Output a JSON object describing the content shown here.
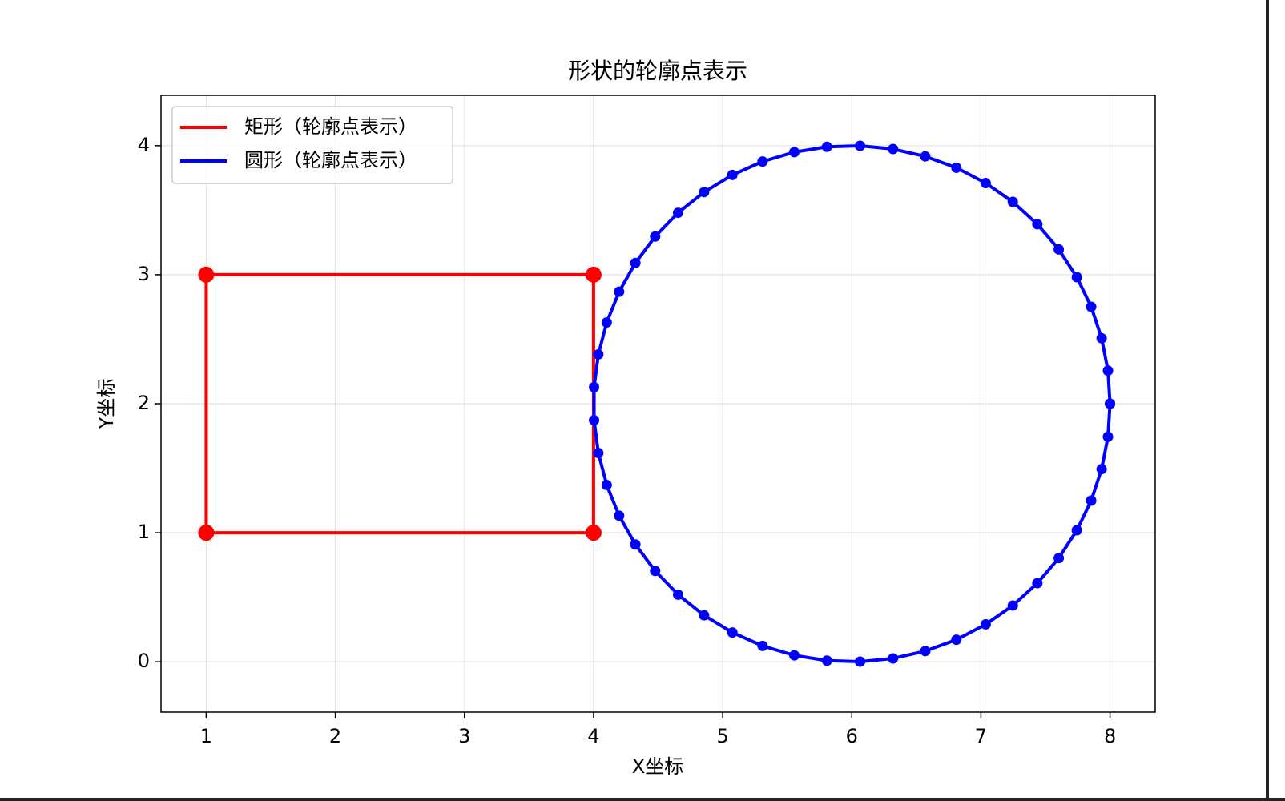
{
  "chart_data": {
    "type": "line",
    "title": "形状的轮廓点表示",
    "xlabel": "X坐标",
    "ylabel": "Y坐标",
    "series": [
      {
        "name": "矩形（轮廓点表示）",
        "color": "#ff0000",
        "x": [
          1,
          4,
          4,
          1,
          1
        ],
        "values": [
          1,
          1,
          3,
          3,
          1
        ]
      },
      {
        "name": "圆形（轮廓点表示）",
        "color": "#0000ff",
        "x": [
          8,
          7.984,
          7.935,
          7.854,
          7.743,
          7.603,
          7.437,
          7.247,
          7.037,
          6.81,
          6.569,
          6.319,
          6.064,
          5.808,
          5.555,
          5.309,
          5.075,
          4.856,
          4.655,
          4.477,
          4.324,
          4.198,
          4.102,
          4.037,
          4.004,
          4.004,
          4.037,
          4.102,
          4.198,
          4.324,
          4.477,
          4.655,
          4.856,
          5.075,
          5.309,
          5.555,
          5.808,
          6.064,
          6.319,
          6.569,
          6.81,
          7.037,
          7.247,
          7.437,
          7.603,
          7.743,
          7.854,
          7.935,
          7.984,
          8
        ],
        "values": [
          2,
          2.256,
          2.507,
          2.751,
          2.981,
          3.196,
          3.391,
          3.564,
          3.71,
          3.829,
          3.917,
          3.974,
          3.999,
          3.991,
          3.95,
          3.877,
          3.773,
          3.64,
          3.48,
          3.296,
          3.091,
          2.868,
          2.63,
          2.382,
          2.128,
          1.872,
          1.618,
          1.37,
          1.132,
          0.909,
          0.704,
          0.52,
          0.36,
          0.227,
          0.123,
          0.05,
          0.009,
          0.001,
          0.026,
          0.083,
          0.171,
          0.29,
          0.436,
          0.609,
          0.804,
          1.019,
          1.249,
          1.493,
          1.744,
          2
        ]
      }
    ],
    "xlim": [
      0.65,
      8.35
    ],
    "ylim": [
      -0.39,
      4.39
    ],
    "xticks": [
      1,
      2,
      3,
      4,
      5,
      6,
      7,
      8
    ],
    "yticks": [
      0,
      1,
      2,
      3,
      4
    ],
    "grid": true,
    "legend": "upper left"
  }
}
